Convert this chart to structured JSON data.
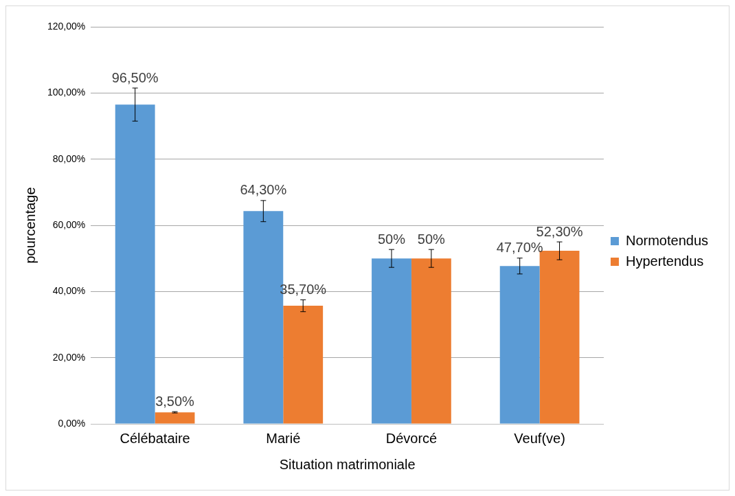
{
  "chart_data": {
    "type": "bar",
    "xlabel": "Situation matrimoniale",
    "ylabel": "pourcentage",
    "categories": [
      "Célébataire",
      "Marié",
      "Dévorcé",
      "Veuf(ve)"
    ],
    "series": [
      {
        "name": "Normotendus",
        "color": "#5b9bd5",
        "values": [
          96.5,
          64.3,
          50,
          47.7
        ],
        "errors": [
          5,
          3.2,
          2.7,
          2.4
        ],
        "value_labels": [
          "96,50%",
          "64,30%",
          "50%",
          "47,70%"
        ]
      },
      {
        "name": "Hypertendus",
        "color": "#ed7d31",
        "values": [
          3.5,
          35.7,
          50,
          52.3
        ],
        "errors": [
          0.2,
          1.8,
          2.7,
          2.7
        ],
        "value_labels": [
          "3,50%",
          "35,70%",
          "50%",
          "52,30%"
        ]
      }
    ],
    "ylim": [
      0,
      120
    ],
    "yticks": [
      {
        "value": 0,
        "label": "0,00%"
      },
      {
        "value": 20,
        "label": "20,00%"
      },
      {
        "value": 40,
        "label": "40,00%"
      },
      {
        "value": 60,
        "label": "60,00%"
      },
      {
        "value": 80,
        "label": "80,00%"
      },
      {
        "value": 100,
        "label": "100,00%"
      },
      {
        "value": 120,
        "label": "120,00%"
      }
    ],
    "grid": "y",
    "legend": "right"
  }
}
